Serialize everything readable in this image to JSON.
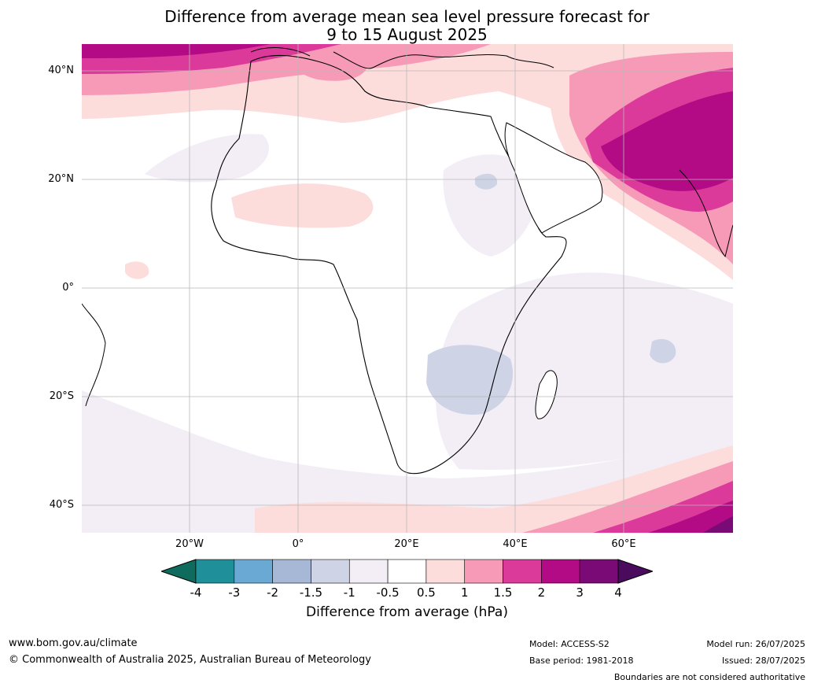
{
  "title_line1": "Difference from average mean sea level pressure forecast for",
  "title_line2": "9 to 15 August 2025",
  "lat_labels": [
    "40°N",
    "20°N",
    "0°",
    "20°S",
    "40°S"
  ],
  "lon_labels": [
    "20°W",
    "0°",
    "20°E",
    "40°E",
    "60°E"
  ],
  "colorbar": {
    "ticks": [
      "-4",
      "-3",
      "-2",
      "-1.5",
      "-1",
      "-0.5",
      "0.5",
      "1",
      "1.5",
      "2",
      "3",
      "4"
    ],
    "colors": [
      "#0e6b5e",
      "#1f8f99",
      "#6aa9d3",
      "#a6b8d6",
      "#cfd3e6",
      "#f3eef6",
      "#ffffff",
      "#fddcdc",
      "#f79ab8",
      "#dc3a9b",
      "#b30a85",
      "#7a0a76",
      "#4a0a5e"
    ],
    "label": "Difference from average (hPa)"
  },
  "footer": {
    "url": "www.bom.gov.au/climate",
    "copyright": "© Commonwealth of Australia 2025, Australian Bureau of Meteorology",
    "model": "Model: ACCESS-S2",
    "base_period": "Base period: 1981-2018",
    "model_run": "Model run: 26/07/2025",
    "issued": "Issued: 28/07/2025",
    "disclaimer": "Boundaries are not considered authoritative"
  }
}
